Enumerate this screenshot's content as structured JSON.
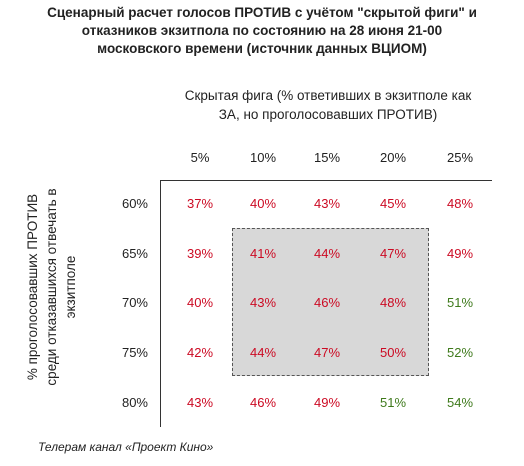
{
  "title_lines": [
    "Сценарный расчет голосов ПРОТИВ с учётом \"скрытой фиги\" и",
    "отказников экзитпола по состоянию на 28 июня 21-00",
    "московского времени (источник данных ВЦИОМ)"
  ],
  "column_header_lines": [
    "Скрытая фига (% ответивших в экзитполе как",
    "ЗА, но проголосовавших ПРОТИВ)"
  ],
  "row_header_lines": [
    "% проголосовавших ПРОТИВ",
    "среди отказавшихся отвечать в",
    "экзитполе"
  ],
  "footer": "Телерам канал «Проект Кино»",
  "colors": {
    "against": "#cc0a23",
    "for": "#3f7a1c",
    "highlight": "#d8d8d8"
  },
  "chart_data": {
    "type": "table",
    "columns": [
      "5%",
      "10%",
      "15%",
      "20%",
      "25%"
    ],
    "rows": [
      "60%",
      "65%",
      "70%",
      "75%",
      "80%"
    ],
    "values": [
      [
        "37%",
        "40%",
        "43%",
        "45%",
        "48%"
      ],
      [
        "39%",
        "41%",
        "44%",
        "47%",
        "49%"
      ],
      [
        "40%",
        "43%",
        "46%",
        "48%",
        "51%"
      ],
      [
        "42%",
        "44%",
        "47%",
        "50%",
        "52%"
      ],
      [
        "43%",
        "46%",
        "49%",
        "51%",
        "54%"
      ]
    ],
    "highlighted_rows": [
      "65%",
      "70%",
      "75%"
    ],
    "highlighted_columns": [
      "10%",
      "15%",
      "20%"
    ]
  }
}
